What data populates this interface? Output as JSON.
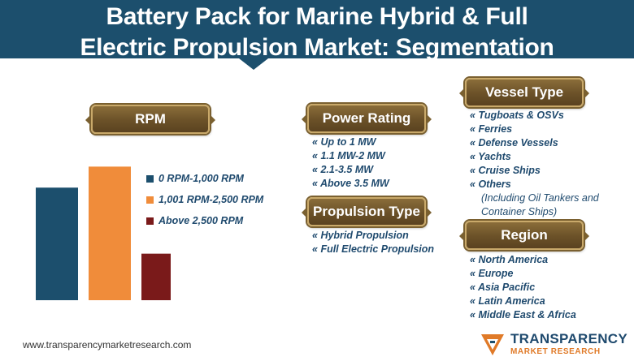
{
  "header": {
    "title_line1": "Battery Pack for Marine Hybrid & Full",
    "title_line2": "Electric Propulsion Market: Segmentation",
    "color": "#1c4f6d"
  },
  "sections": {
    "rpm": {
      "label": "RPM"
    },
    "power_rating": {
      "label": "Power Rating",
      "items": [
        "Up to 1 MW",
        "1.1 MW-2 MW",
        "2.1-3.5 MW",
        "Above 3.5 MW"
      ]
    },
    "propulsion_type": {
      "label": "Propulsion Type",
      "items": [
        "Hybrid Propulsion",
        "Full Electric Propulsion"
      ]
    },
    "vessel_type": {
      "label": "Vessel Type",
      "items": [
        "Tugboats & OSVs",
        "Ferries",
        "Defense Vessels",
        "Yachts",
        "Cruise Ships",
        "Others"
      ],
      "note_line1": "(Including Oil Tankers and",
      "note_line2": "Container Ships)"
    },
    "region": {
      "label": "Region",
      "items": [
        "North America",
        "Europe",
        "Asia Pacific",
        "Latin America",
        "Middle East & Africa"
      ]
    }
  },
  "bullet": "«",
  "chart_data": {
    "type": "bar",
    "categories": [
      "0 RPM-1,000 RPM",
      "1,001 RPM-2,500 RPM",
      "Above 2,500 RPM"
    ],
    "values": [
      0.75,
      0.89,
      0.31
    ],
    "colors": [
      "#1c4f6d",
      "#f08c3a",
      "#7a1a1a"
    ],
    "ylim": [
      0,
      1
    ],
    "axes_shown": false,
    "grid": false,
    "legend_position": "right"
  },
  "footer": {
    "url": "www.transparencymarketresearch.com",
    "logo_line1": "TRANSPARENCY",
    "logo_line2": "MARKET RESEARCH"
  }
}
